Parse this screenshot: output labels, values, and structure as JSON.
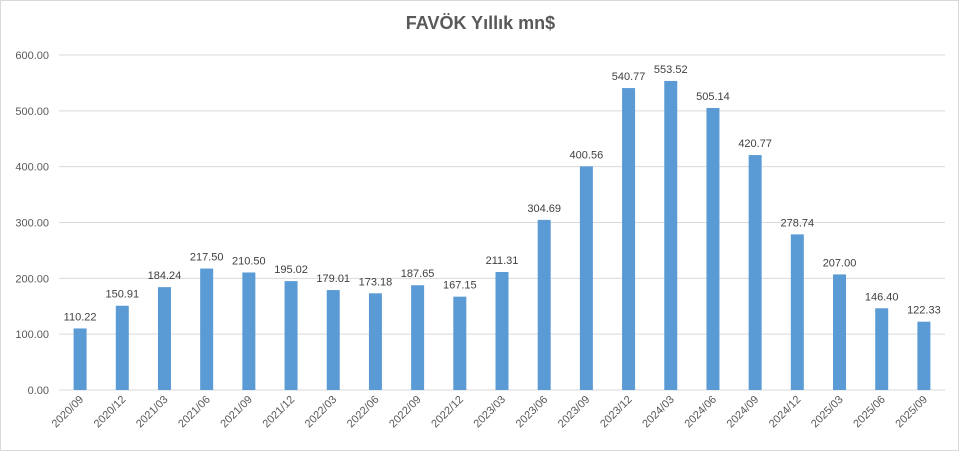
{
  "chart_data": {
    "type": "bar",
    "title": "FAVÖK Yıllık mn$",
    "xlabel": "",
    "ylabel": "",
    "ylim": [
      0,
      600
    ],
    "yticks": [
      "0.00",
      "100.00",
      "200.00",
      "300.00",
      "400.00",
      "500.00",
      "600.00"
    ],
    "grid": true,
    "legend": "none",
    "bar_color": "#5b9bd5",
    "categories": [
      "2020/09",
      "2020/12",
      "2021/03",
      "2021/06",
      "2021/09",
      "2021/12",
      "2022/03",
      "2022/06",
      "2022/09",
      "2022/12",
      "2023/03",
      "2023/06",
      "2023/09",
      "2023/12",
      "2024/03",
      "2024/06",
      "2024/09",
      "2024/12",
      "2025/03",
      "2025/06",
      "2025/09"
    ],
    "values": [
      110.22,
      150.91,
      184.24,
      217.5,
      210.5,
      195.02,
      179.01,
      173.18,
      187.65,
      167.15,
      211.31,
      304.69,
      400.56,
      540.77,
      553.52,
      505.14,
      420.77,
      278.74,
      207.0,
      146.4,
      122.33
    ],
    "value_labels": [
      "110.22",
      "150.91",
      "184.24",
      "217.50",
      "210.50",
      "195.02",
      "179.01",
      "173.18",
      "187.65",
      "167.15",
      "211.31",
      "304.69",
      "400.56",
      "540.77",
      "553.52",
      "505.14",
      "420.77",
      "278.74",
      "207.00",
      "146.40",
      "122.33"
    ]
  }
}
